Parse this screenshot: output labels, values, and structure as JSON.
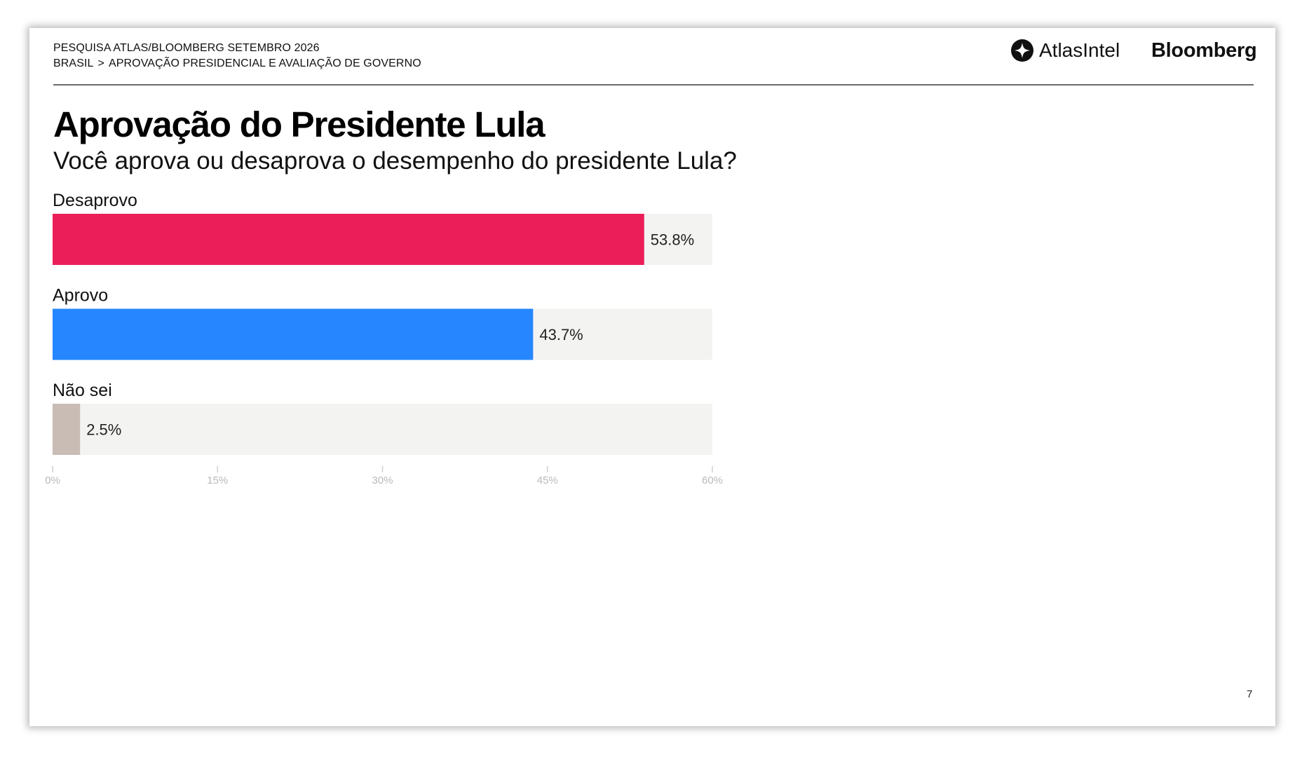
{
  "header": {
    "survey": "PESQUISA ATLAS/BLOOMBERG SETEMBRO 2026",
    "breadcrumb": {
      "root": "BRASIL",
      "separator": ">",
      "section": "APROVAÇÃO PRESIDENCIAL E AVALIAÇÃO DE GOVERNO"
    },
    "logos": {
      "atlas": "AtlasIntel",
      "atlas_icon": "atlasintel-logo-icon",
      "bloomberg": "Bloomberg"
    }
  },
  "chart_data": {
    "type": "bar",
    "orientation": "horizontal",
    "title": "Aprovação do Presidente Lula",
    "subtitle": "Você aprova ou desaprova o desempenho do presidente Lula?",
    "categories": [
      "Desaprovo",
      "Aprovo",
      "Não sei"
    ],
    "values": [
      53.8,
      43.7,
      2.5
    ],
    "value_labels": [
      "53.8%",
      "43.7%",
      "2.5%"
    ],
    "colors": [
      "#EB1E5A",
      "#2586FF",
      "#C8BCB4"
    ],
    "track_color": "#F3F3F2",
    "xlim": [
      0,
      60
    ],
    "x_ticks": [
      0,
      15,
      30,
      45,
      60
    ],
    "x_tick_labels": [
      "0%",
      "15%",
      "30%",
      "45%",
      "60%"
    ],
    "grid": false,
    "legend": "none"
  },
  "footer": {
    "page_number": "7"
  }
}
